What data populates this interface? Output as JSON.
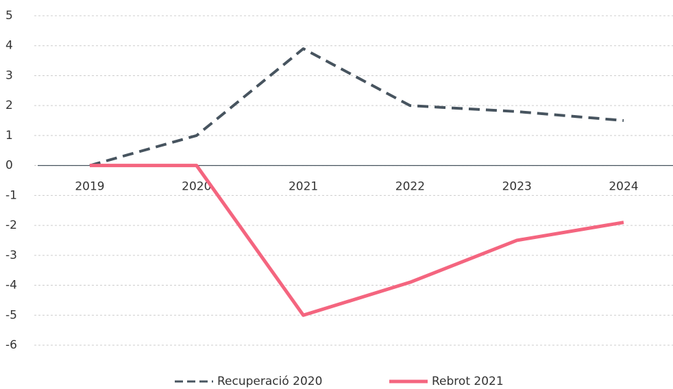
{
  "chart_data": {
    "type": "line",
    "categories": [
      "2019",
      "2020",
      "2021",
      "2022",
      "2023",
      "2024"
    ],
    "series": [
      {
        "name": "Recuperació 2020",
        "color": "#47545f",
        "dash": true,
        "values": [
          0,
          1,
          3.9,
          2,
          1.8,
          1.5
        ]
      },
      {
        "name": "Rebrot 2021",
        "color": "#f4657f",
        "dash": false,
        "values": [
          0,
          0,
          -5,
          -3.9,
          -2.5,
          -1.9
        ]
      }
    ],
    "ylim": [
      -6,
      5
    ],
    "yticks": [
      5,
      4,
      3,
      2,
      1,
      0,
      -1,
      -2,
      -3,
      -4,
      -5,
      -6
    ],
    "grid": true,
    "legend": "bottom"
  }
}
